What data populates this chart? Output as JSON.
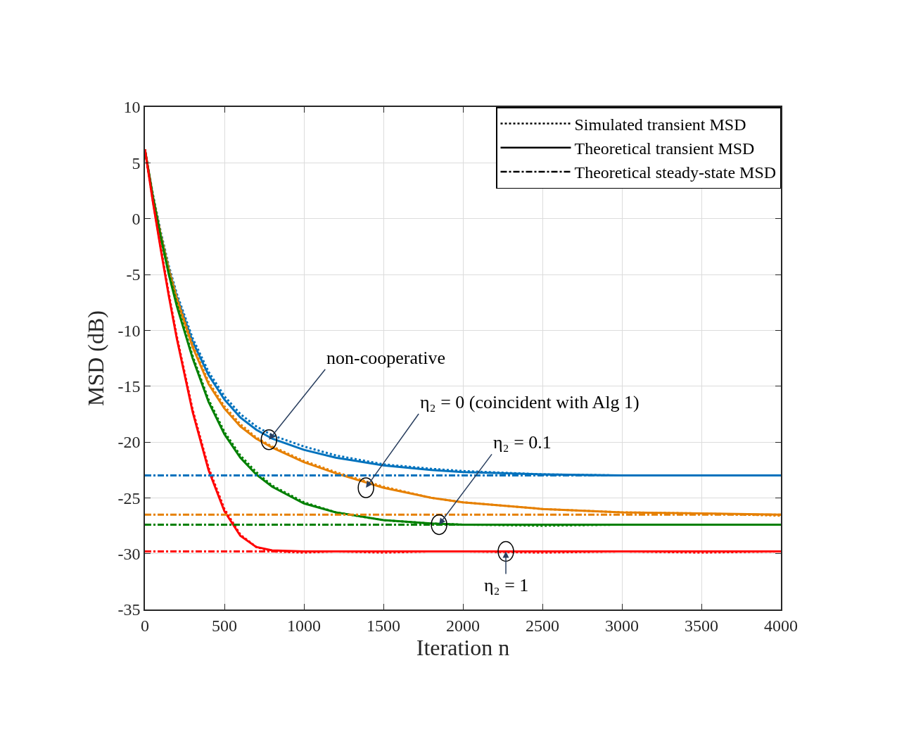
{
  "chart_data": {
    "type": "line",
    "xlabel": "Iteration n",
    "ylabel": "MSD (dB)",
    "x": [
      0,
      50,
      100,
      150,
      200,
      300,
      400,
      500,
      600,
      700,
      800,
      1000,
      1200,
      1500,
      1800,
      2000,
      2500,
      3000,
      3500,
      4000
    ],
    "xlim": [
      0,
      4000
    ],
    "xticks": [
      0,
      500,
      1000,
      1500,
      2000,
      2500,
      3000,
      3500,
      4000
    ],
    "ylim": [
      -35,
      10
    ],
    "yticks": [
      -35,
      -30,
      -25,
      -20,
      -15,
      -10,
      -5,
      0,
      5,
      10
    ],
    "grid": true,
    "legend": "top right",
    "series": [
      {
        "name": "Simulated transient MSD",
        "color": "#000000",
        "line_style": "dotted",
        "values": [
          null,
          null,
          null,
          null,
          null,
          null,
          null,
          null,
          null,
          null,
          null,
          null,
          null,
          null,
          null,
          null,
          null,
          null,
          null,
          null
        ]
      },
      {
        "name": "Theoretical transient MSD",
        "color": "#000000",
        "line_style": "solid",
        "values": [
          null,
          null,
          null,
          null,
          null,
          null,
          null,
          null,
          null,
          null,
          null,
          null,
          null,
          null,
          null,
          null,
          null,
          null,
          null,
          null
        ]
      },
      {
        "name": "Theoretical steady-state MSD",
        "color": "#000000",
        "line_style": "dashdot",
        "values": [
          null,
          null,
          null,
          null,
          null,
          null,
          null,
          null,
          null,
          null,
          null,
          null,
          null,
          null,
          null,
          null,
          null,
          null,
          null,
          null
        ]
      },
      {
        "color": "#0072bd",
        "line_style": "dotted",
        "values": [
          6.2,
          2.2,
          -1.2,
          -4.2,
          -6.7,
          -10.7,
          -13.7,
          -15.9,
          -17.5,
          -18.6,
          -19.4,
          -20.4,
          -21.2,
          -22.0,
          -22.4,
          -22.6,
          -22.9,
          -23.0,
          -23.0,
          -23.0
        ]
      },
      {
        "color": "#0072bd",
        "line_style": "solid",
        "values": [
          6.2,
          2,
          -1.5,
          -4.5,
          -7,
          -11,
          -14,
          -16.2,
          -17.8,
          -18.9,
          -19.7,
          -20.7,
          -21.4,
          -22.1,
          -22.5,
          -22.7,
          -22.9,
          -23.0,
          -23.0,
          -23.0
        ]
      },
      {
        "color": "#e68000",
        "line_style": "dotted",
        "values": [
          6.2,
          2.1,
          -1.4,
          -4.4,
          -7.0,
          -11.3,
          -14.6,
          -16.8,
          -18.4,
          -19.6,
          -20.4,
          -21.7,
          -22.7,
          -24.0,
          -25.0,
          -25.4,
          -26.0,
          -26.3,
          -26.4,
          -26.6
        ]
      },
      {
        "color": "#e68000",
        "line_style": "solid",
        "values": [
          6.2,
          2,
          -1.5,
          -4.6,
          -7.2,
          -11.5,
          -14.8,
          -17,
          -18.6,
          -19.7,
          -20.5,
          -21.8,
          -22.8,
          -24.1,
          -25.0,
          -25.4,
          -26.0,
          -26.3,
          -26.4,
          -26.5
        ]
      },
      {
        "color": "#008000",
        "line_style": "dotted",
        "values": [
          6.2,
          2.0,
          -1.6,
          -4.8,
          -7.6,
          -12.3,
          -16.2,
          -19.1,
          -21.2,
          -22.7,
          -23.9,
          -25.4,
          -26.3,
          -27.0,
          -27.3,
          -27.4,
          -27.5,
          -27.4,
          -27.4,
          -27.4
        ]
      },
      {
        "color": "#008000",
        "line_style": "solid",
        "values": [
          6.2,
          1.9,
          -1.7,
          -5,
          -7.8,
          -12.5,
          -16.4,
          -19.3,
          -21.4,
          -22.9,
          -24.0,
          -25.5,
          -26.3,
          -27.0,
          -27.3,
          -27.4,
          -27.4,
          -27.4,
          -27.4,
          -27.4
        ]
      },
      {
        "color": "#ff0000",
        "line_style": "dotted",
        "values": [
          6.2,
          1.6,
          -2.6,
          -6.7,
          -10.5,
          -17.1,
          -22.3,
          -26.0,
          -28.3,
          -29.4,
          -29.8,
          -29.9,
          -29.8,
          -29.9,
          -29.8,
          -29.8,
          -29.9,
          -29.8,
          -29.9,
          -29.8
        ]
      },
      {
        "color": "#ff0000",
        "line_style": "solid",
        "values": [
          6.2,
          1.5,
          -2.8,
          -6.9,
          -10.7,
          -17.3,
          -22.5,
          -26.2,
          -28.4,
          -29.4,
          -29.7,
          -29.8,
          -29.8,
          -29.8,
          -29.8,
          -29.8,
          -29.8,
          -29.8,
          -29.8,
          -29.8
        ]
      }
    ],
    "ref_lines": [
      {
        "axis": "y",
        "value": -23,
        "color": "#0072bd",
        "line_style": "dashdot"
      },
      {
        "axis": "y",
        "value": -26.5,
        "color": "#e68000",
        "line_style": "dashdot"
      },
      {
        "axis": "y",
        "value": -27.4,
        "color": "#008000",
        "line_style": "dashdot"
      },
      {
        "axis": "y",
        "value": -29.8,
        "color": "#ff0000",
        "line_style": "dashdot"
      }
    ],
    "annotations": [
      {
        "text": "non-cooperative",
        "x": 780,
        "y": -19.8
      },
      {
        "text": "η₂ = 0 (coincident with Alg 1)",
        "x": 1390,
        "y": -24.1
      },
      {
        "text": "η₂ = 0.1",
        "x": 1850,
        "y": -27.4
      },
      {
        "text": "η₂ = 1",
        "x": 2270,
        "y": -29.8
      }
    ]
  }
}
